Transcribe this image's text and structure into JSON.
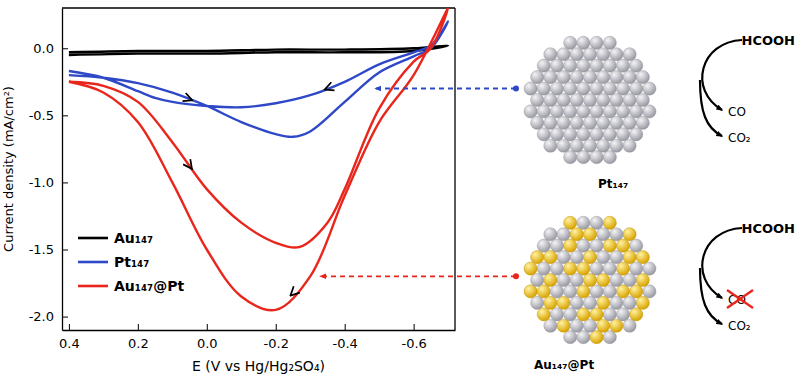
{
  "chart_data": {
    "type": "line",
    "x_label": "E (V vs Hg/Hg₂SO₄)",
    "y_label": "Current density (mA/cm²)",
    "xlim": [
      0.42,
      -0.72
    ],
    "xticks": [
      0.4,
      0.2,
      {
        "value": 0,
        "label": "0.0"
      },
      -0.2,
      -0.4,
      -0.6
    ],
    "ylim": [
      -2.1,
      0.3
    ],
    "yticks": [
      {
        "value": 0,
        "label": "0.0"
      },
      -0.5,
      {
        "value": -1,
        "label": "-1.0"
      },
      -1.5,
      {
        "value": -2,
        "label": "-2.0"
      }
    ],
    "grid": false,
    "legend": "lower left",
    "series": [
      {
        "name": "Au₁₄₇",
        "color": "#000000",
        "x": [
          0.4,
          0.2,
          0,
          -0.2,
          -0.4,
          -0.6,
          -0.7,
          -0.6,
          -0.4,
          -0.2,
          0,
          0.2,
          0.4
        ],
        "values": [
          -0.05,
          -0.04,
          -0.04,
          -0.03,
          -0.03,
          -0.02,
          0.02,
          0.0,
          -0.01,
          -0.01,
          -0.02,
          -0.02,
          -0.03
        ]
      },
      {
        "name": "Pt₁₄₇",
        "color": "#2f48c8",
        "x": [
          0.4,
          0.3,
          0.2,
          0.1,
          0,
          -0.1,
          -0.2,
          -0.25,
          -0.3,
          -0.4,
          -0.5,
          -0.6,
          -0.65,
          -0.7,
          -0.65,
          -0.6,
          -0.5,
          -0.4,
          -0.3,
          -0.2,
          -0.1,
          0,
          0.1,
          0.15,
          0.2,
          0.3,
          0.4
        ],
        "values": [
          -0.2,
          -0.22,
          -0.26,
          -0.33,
          -0.43,
          -0.55,
          -0.64,
          -0.66,
          -0.62,
          -0.4,
          -0.18,
          -0.06,
          0.0,
          0.2,
          0.02,
          -0.03,
          -0.12,
          -0.25,
          -0.35,
          -0.41,
          -0.44,
          -0.43,
          -0.4,
          -0.37,
          -0.32,
          -0.22,
          -0.17
        ]
      },
      {
        "name": "Au₁₄₇@Pt",
        "color": "#e8261c",
        "x": [
          0.4,
          0.3,
          0.2,
          0.1,
          0,
          -0.1,
          -0.2,
          -0.27,
          -0.35,
          -0.4,
          -0.5,
          -0.6,
          -0.65,
          -0.7,
          -0.6,
          -0.5,
          -0.4,
          -0.3,
          -0.2,
          -0.1,
          0,
          0.1,
          0.2,
          0.3,
          0.4
        ],
        "values": [
          -0.25,
          -0.28,
          -0.4,
          -0.7,
          -1.05,
          -1.3,
          -1.45,
          -1.48,
          -1.3,
          -1.05,
          -0.45,
          -0.1,
          0.0,
          0.3,
          -0.2,
          -0.55,
          -1.1,
          -1.7,
          -1.95,
          -1.85,
          -1.5,
          -1.0,
          -0.55,
          -0.33,
          -0.25
        ]
      }
    ],
    "annotations": [
      "Pt₁₄₇",
      "HCOOH",
      "CO",
      "CO₂",
      "Au₁₄₇@Pt",
      "HCOOH",
      "CO",
      "CO₂"
    ]
  }
}
